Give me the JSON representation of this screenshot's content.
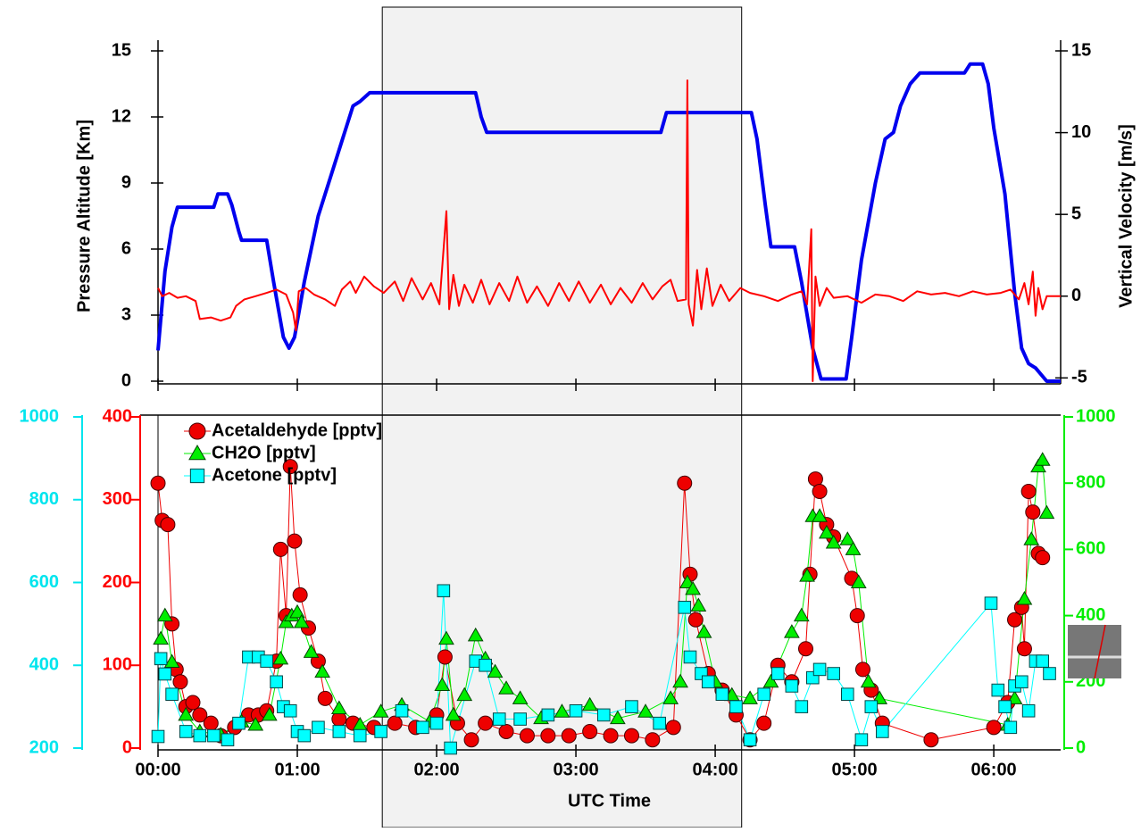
{
  "chart_data": [
    {
      "type": "line",
      "ylabel": "Pressure Altitude [Km]",
      "y2label": "Vertical Velocity [m/s]",
      "xlim": [
        0,
        6.48
      ],
      "xticks": [
        0,
        1,
        2,
        3,
        4,
        5,
        6
      ],
      "ylim": [
        0,
        15
      ],
      "yticks": [
        0,
        3,
        6,
        9,
        12,
        15
      ],
      "y2lim": [
        -5.2,
        15
      ],
      "y2ticks": [
        -5,
        0,
        5,
        10,
        15
      ],
      "span": [
        1.61,
        4.19
      ],
      "span_color": "#f2f2f2",
      "series": [
        {
          "color": "#0000ee",
          "axis": "y",
          "x": [
            0,
            0.05,
            0.1,
            0.14,
            0.4,
            0.43,
            0.5,
            0.53,
            0.58,
            0.6,
            0.78,
            0.83,
            0.9,
            0.94,
            0.98,
            1.05,
            1.15,
            1.25,
            1.35,
            1.4,
            1.45,
            1.52,
            2.28,
            2.32,
            2.36,
            3.61,
            3.65,
            4.26,
            4.3,
            4.36,
            4.4,
            4.57,
            4.62,
            4.7,
            4.76,
            4.94,
            4.98,
            5.05,
            5.15,
            5.22,
            5.28,
            5.33,
            5.4,
            5.47,
            5.79,
            5.83,
            5.92,
            5.96,
            6.0,
            6.08,
            6.15,
            6.2,
            6.25,
            6.3,
            6.38,
            6.48
          ],
          "values": [
            1.4,
            5,
            7,
            7.9,
            7.9,
            8.5,
            8.5,
            8,
            6.8,
            6.4,
            6.4,
            4.5,
            2,
            1.5,
            2,
            4.5,
            7.5,
            9.5,
            11.5,
            12.5,
            12.7,
            13.1,
            13.1,
            12,
            11.3,
            11.3,
            12.2,
            12.2,
            11,
            8,
            6.1,
            6.1,
            4.5,
            1.5,
            0.1,
            0.1,
            2,
            5.5,
            9,
            11,
            11.3,
            12.5,
            13.5,
            14,
            14,
            14.4,
            14.4,
            13.5,
            11.5,
            8.5,
            4,
            1.5,
            0.8,
            0.6,
            0,
            0
          ]
        },
        {
          "color": "#ff0000",
          "axis": "y2",
          "x": [
            0,
            0.03,
            0.08,
            0.14,
            0.2,
            0.27,
            0.3,
            0.38,
            0.45,
            0.52,
            0.56,
            0.62,
            0.7,
            0.78,
            0.85,
            0.92,
            0.97,
            0.99,
            1.01,
            1.06,
            1.12,
            1.2,
            1.27,
            1.32,
            1.38,
            1.42,
            1.48,
            1.55,
            1.62,
            1.7,
            1.76,
            1.82,
            1.9,
            1.96,
            2.02,
            2.07,
            2.09,
            2.12,
            2.16,
            2.2,
            2.26,
            2.32,
            2.38,
            2.45,
            2.52,
            2.58,
            2.65,
            2.72,
            2.8,
            2.88,
            2.95,
            3.02,
            3.1,
            3.18,
            3.25,
            3.32,
            3.4,
            3.48,
            3.55,
            3.62,
            3.68,
            3.73,
            3.79,
            3.8,
            3.81,
            3.84,
            3.87,
            3.9,
            3.94,
            3.98,
            4.04,
            4.1,
            4.18,
            4.25,
            4.35,
            4.45,
            4.55,
            4.62,
            4.66,
            4.69,
            4.7,
            4.72,
            4.75,
            4.8,
            4.85,
            4.95,
            5.05,
            5.15,
            5.25,
            5.35,
            5.45,
            5.55,
            5.65,
            5.75,
            5.85,
            5.95,
            6.05,
            6.12,
            6.18,
            6.22,
            6.25,
            6.28,
            6.3,
            6.32,
            6.35,
            6.38,
            6.48
          ],
          "values": [
            0.5,
            0,
            0.2,
            -0.1,
            0,
            -0.3,
            -1.4,
            -1.3,
            -1.5,
            -1.3,
            -0.6,
            -0.2,
            0,
            0.2,
            0.4,
            0.1,
            -1,
            -2.1,
            0.3,
            0.5,
            0.1,
            -0.2,
            -0.6,
            0.4,
            0.9,
            0.2,
            1.2,
            0.6,
            0.2,
            0.9,
            -0.3,
            1.1,
            -0.2,
            0.8,
            -0.5,
            5.2,
            -0.8,
            1.3,
            -0.6,
            0.7,
            -0.4,
            1,
            -0.5,
            0.8,
            -0.3,
            1.2,
            -0.4,
            0.6,
            -0.6,
            0.8,
            -0.3,
            0.9,
            -0.4,
            0.7,
            -0.5,
            0.5,
            -0.4,
            0.8,
            -0.2,
            0.6,
            1,
            -0.3,
            -0.2,
            13.2,
            -0.5,
            -1.8,
            1.6,
            -0.8,
            1.7,
            -0.6,
            0.7,
            -0.3,
            0.5,
            0.2,
            0,
            -0.3,
            0.1,
            0.3,
            -0.5,
            4.1,
            -5.2,
            1.2,
            -0.6,
            0.5,
            -0.1,
            0,
            -0.4,
            0.1,
            0,
            -0.3,
            0.3,
            0.1,
            0.2,
            0,
            0.3,
            0.1,
            0.2,
            0.4,
            -0.2,
            0.8,
            -0.5,
            1.5,
            -1.2,
            0.5,
            -0.8,
            0,
            0
          ]
        }
      ]
    },
    {
      "type": "scatter",
      "xlabel": "UTC Time",
      "xlim": [
        0,
        6.48
      ],
      "xticks": [
        {
          "value": 0,
          "label": "00:00"
        },
        {
          "value": 1,
          "label": "01:00"
        },
        {
          "value": 2,
          "label": "02:00"
        },
        {
          "value": 3,
          "label": "03:00"
        },
        {
          "value": 4,
          "label": "04:00"
        },
        {
          "value": 5,
          "label": "05:00"
        },
        {
          "value": 6,
          "label": "06:00"
        }
      ],
      "ylim": [
        0,
        400
      ],
      "yticks": [
        0,
        100,
        200,
        300,
        400
      ],
      "ycolor": "#ff0000",
      "y2lim": [
        0,
        1000
      ],
      "y2ticks": [
        0,
        200,
        400,
        600,
        800,
        1000
      ],
      "y2color": "#00ee00",
      "y3lim": [
        200,
        1000
      ],
      "y3ticks": [
        200,
        400,
        600,
        800,
        1000
      ],
      "y3color": "#00e5ee",
      "series": [
        {
          "name": "Acetaldehyde [pptv]",
          "color": "#ee0000",
          "marker": "circle",
          "axis": "y",
          "x": [
            0,
            0.03,
            0.07,
            0.1,
            0.13,
            0.16,
            0.2,
            0.25,
            0.3,
            0.38,
            0.45,
            0.55,
            0.65,
            0.72,
            0.78,
            0.85,
            0.88,
            0.92,
            0.95,
            0.98,
            1.02,
            1.08,
            1.15,
            1.2,
            1.3,
            1.4,
            1.55,
            1.7,
            1.85,
            2.0,
            2.06,
            2.15,
            2.25,
            2.35,
            2.5,
            2.65,
            2.8,
            2.95,
            3.1,
            3.25,
            3.4,
            3.55,
            3.7,
            3.78,
            3.82,
            3.86,
            3.95,
            4.05,
            4.15,
            4.25,
            4.35,
            4.45,
            4.55,
            4.65,
            4.68,
            4.72,
            4.75,
            4.8,
            4.85,
            4.98,
            5.02,
            5.06,
            5.12,
            5.2,
            5.55,
            6.0,
            6.1,
            6.15,
            6.2,
            6.22,
            6.25,
            6.28,
            6.32,
            6.35
          ],
          "values": [
            320,
            275,
            270,
            150,
            95,
            80,
            50,
            55,
            40,
            30,
            15,
            25,
            40,
            40,
            45,
            105,
            240,
            160,
            340,
            250,
            185,
            145,
            105,
            60,
            35,
            30,
            25,
            30,
            25,
            40,
            110,
            30,
            10,
            30,
            20,
            15,
            15,
            15,
            20,
            15,
            15,
            10,
            25,
            320,
            210,
            155,
            90,
            70,
            40,
            10,
            30,
            100,
            80,
            120,
            210,
            325,
            310,
            270,
            255,
            205,
            160,
            95,
            70,
            30,
            10,
            25,
            55,
            155,
            170,
            120,
            310,
            285,
            235,
            230
          ]
        },
        {
          "name": "CH2O [pptv]",
          "color": "#00ee00",
          "marker": "triangle",
          "axis": "y2",
          "x": [
            0.02,
            0.05,
            0.1,
            0.2,
            0.3,
            0.45,
            0.6,
            0.7,
            0.8,
            0.88,
            0.92,
            0.96,
            1.0,
            1.03,
            1.1,
            1.18,
            1.3,
            1.45,
            1.6,
            1.75,
            1.95,
            2.04,
            2.07,
            2.12,
            2.2,
            2.28,
            2.35,
            2.42,
            2.5,
            2.6,
            2.75,
            2.9,
            3.1,
            3.3,
            3.5,
            3.68,
            3.75,
            3.8,
            3.84,
            3.88,
            3.92,
            4.0,
            4.12,
            4.25,
            4.4,
            4.55,
            4.62,
            4.66,
            4.7,
            4.75,
            4.8,
            4.85,
            4.95,
            4.99,
            5.03,
            5.1,
            5.18,
            6.1,
            6.15,
            6.22,
            6.27,
            6.32,
            6.35,
            6.38
          ],
          "values": [
            330,
            400,
            260,
            100,
            50,
            40,
            80,
            70,
            100,
            270,
            380,
            400,
            410,
            380,
            290,
            230,
            120,
            70,
            110,
            130,
            80,
            190,
            330,
            100,
            160,
            340,
            270,
            230,
            180,
            150,
            90,
            110,
            130,
            90,
            110,
            150,
            200,
            500,
            480,
            430,
            350,
            200,
            160,
            150,
            200,
            350,
            400,
            520,
            700,
            700,
            650,
            620,
            630,
            600,
            500,
            200,
            150,
            70,
            150,
            450,
            630,
            850,
            870,
            710
          ]
        },
        {
          "name": "Acetone [pptv]",
          "color": "#00ffff",
          "marker": "square",
          "axis": "y3",
          "x": [
            0,
            0.02,
            0.05,
            0.1,
            0.2,
            0.3,
            0.4,
            0.5,
            0.58,
            0.65,
            0.72,
            0.78,
            0.85,
            0.9,
            0.95,
            1.0,
            1.05,
            1.15,
            1.3,
            1.45,
            1.6,
            1.75,
            1.9,
            2.0,
            2.05,
            2.1,
            2.28,
            2.35,
            2.45,
            2.6,
            2.8,
            3.0,
            3.2,
            3.4,
            3.6,
            3.78,
            3.82,
            3.9,
            3.95,
            4.05,
            4.15,
            4.25,
            4.35,
            4.45,
            4.55,
            4.62,
            4.7,
            4.75,
            4.85,
            4.95,
            5.05,
            5.12,
            5.2,
            5.98,
            6.03,
            6.08,
            6.12,
            6.15,
            6.2,
            6.25,
            6.3,
            6.35,
            6.4
          ],
          "values": [
            228,
            416,
            379,
            330,
            240,
            230,
            230,
            220,
            260,
            420,
            420,
            410,
            360,
            300,
            290,
            240,
            230,
            250,
            240,
            230,
            240,
            290,
            250,
            260,
            580,
            200,
            410,
            400,
            270,
            270,
            280,
            290,
            280,
            300,
            260,
            540,
            420,
            380,
            360,
            330,
            300,
            220,
            330,
            380,
            350,
            300,
            370,
            390,
            380,
            330,
            220,
            300,
            240,
            550,
            340,
            300,
            250,
            350,
            360,
            290,
            410,
            410,
            380
          ]
        }
      ]
    }
  ]
}
